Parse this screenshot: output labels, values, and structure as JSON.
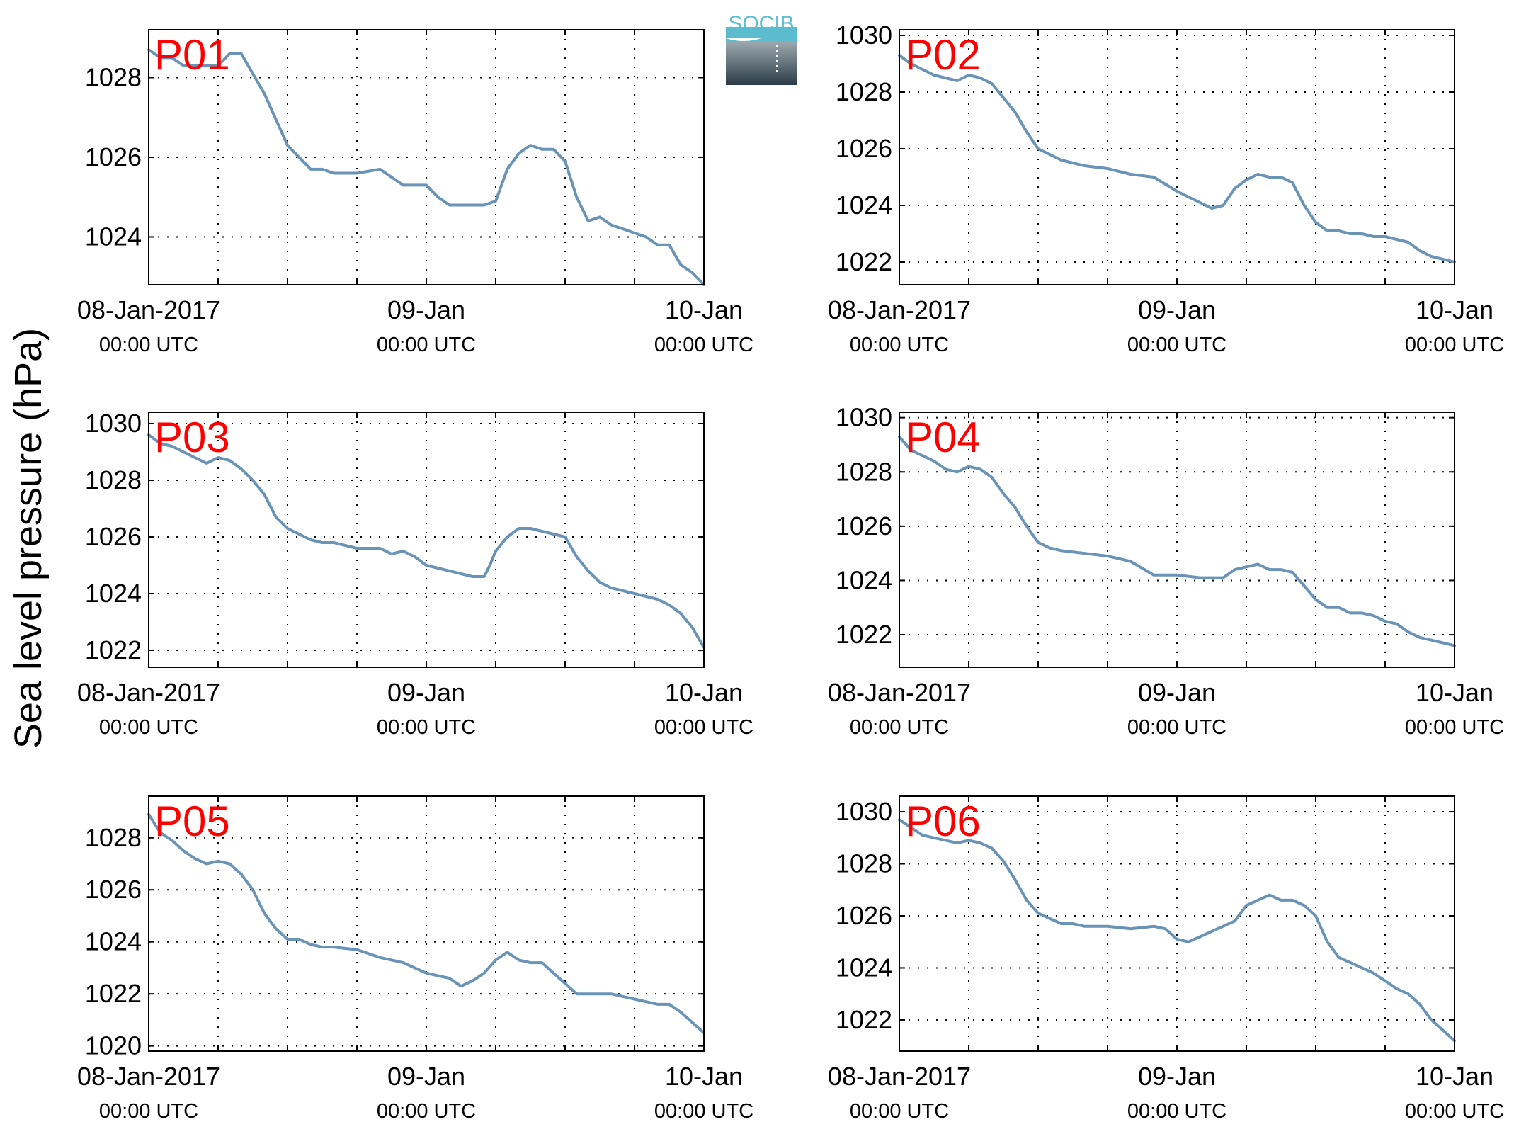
{
  "ylabel": "Sea level pressure (hPa)",
  "logo": {
    "text": "SOCIB",
    "color_top": "#5bbccf",
    "color_bottom": "#2c3c47"
  },
  "series_color": "#6a93b8",
  "label_color": "#ff0000",
  "chart_data": [
    {
      "type": "line",
      "panel": "P01",
      "x_ticks": [
        {
          "date": "08-Jan-2017",
          "time": "00:00 UTC"
        },
        {
          "date": "09-Jan",
          "time": "00:00 UTC"
        },
        {
          "date": "10-Jan",
          "time": "00:00 UTC"
        }
      ],
      "xlim_hours": [
        0,
        48
      ],
      "ylim": [
        1022.8,
        1029.2
      ],
      "yticks": [
        1024,
        1026,
        1028
      ],
      "grid": true,
      "x": [
        0,
        1,
        2,
        3,
        4,
        6,
        7,
        8,
        9,
        10,
        12,
        14,
        15,
        16,
        16.5,
        18,
        20,
        22,
        24,
        25,
        26,
        27,
        29,
        30,
        30.5,
        31,
        32,
        33,
        34,
        35,
        36,
        37,
        38,
        39,
        40,
        41,
        42,
        43,
        44,
        45,
        46,
        47,
        48
      ],
      "y": [
        1028.7,
        1028.5,
        1028.5,
        1028.3,
        1028.3,
        1028.3,
        1028.6,
        1028.6,
        1028.1,
        1027.6,
        1026.3,
        1025.7,
        1025.7,
        1025.6,
        1025.6,
        1025.6,
        1025.7,
        1025.3,
        1025.3,
        1025.0,
        1024.8,
        1024.8,
        1024.8,
        1024.9,
        1025.3,
        1025.7,
        1026.1,
        1026.3,
        1026.2,
        1026.2,
        1025.9,
        1025.0,
        1024.4,
        1024.5,
        1024.3,
        1024.2,
        1024.1,
        1024.0,
        1023.8,
        1023.8,
        1023.3,
        1023.1,
        1022.8
      ]
    },
    {
      "type": "line",
      "panel": "P02",
      "x_ticks": [
        {
          "date": "08-Jan-2017",
          "time": "00:00 UTC"
        },
        {
          "date": "09-Jan",
          "time": "00:00 UTC"
        },
        {
          "date": "10-Jan",
          "time": "00:00 UTC"
        }
      ],
      "xlim_hours": [
        0,
        48
      ],
      "ylim": [
        1021.2,
        1030.2
      ],
      "yticks": [
        1022,
        1024,
        1026,
        1028,
        1030
      ],
      "grid": true,
      "x": [
        0,
        1,
        2,
        3,
        4,
        5,
        6,
        7,
        8,
        9,
        10,
        11,
        12,
        13,
        14,
        15,
        16,
        18,
        20,
        22,
        24,
        25,
        26,
        27,
        28,
        29,
        30,
        31,
        32,
        33,
        34,
        35,
        36,
        37,
        38,
        39,
        40,
        41,
        42,
        43,
        44,
        45,
        46,
        47,
        48
      ],
      "y": [
        1029.3,
        1029.0,
        1028.8,
        1028.6,
        1028.5,
        1028.4,
        1028.6,
        1028.5,
        1028.3,
        1027.8,
        1027.3,
        1026.6,
        1026.0,
        1025.8,
        1025.6,
        1025.5,
        1025.4,
        1025.3,
        1025.1,
        1025.0,
        1024.5,
        1024.3,
        1024.1,
        1023.9,
        1024.0,
        1024.6,
        1024.9,
        1025.1,
        1025.0,
        1025.0,
        1024.8,
        1024.0,
        1023.4,
        1023.1,
        1023.1,
        1023.0,
        1023.0,
        1022.9,
        1022.9,
        1022.8,
        1022.7,
        1022.4,
        1022.2,
        1022.1,
        1022.0
      ]
    },
    {
      "type": "line",
      "panel": "P03",
      "x_ticks": [
        {
          "date": "08-Jan-2017",
          "time": "00:00 UTC"
        },
        {
          "date": "09-Jan",
          "time": "00:00 UTC"
        },
        {
          "date": "10-Jan",
          "time": "00:00 UTC"
        }
      ],
      "xlim_hours": [
        0,
        48
      ],
      "ylim": [
        1021.4,
        1030.4
      ],
      "yticks": [
        1022,
        1024,
        1026,
        1028,
        1030
      ],
      "grid": true,
      "x": [
        0,
        1,
        2,
        3,
        4,
        5,
        6,
        7,
        8,
        9,
        10,
        11,
        12,
        13,
        14,
        15,
        16,
        18,
        20,
        21,
        22,
        23,
        24,
        25,
        26,
        27,
        28,
        29,
        29.5,
        30,
        31,
        32,
        33,
        34,
        35,
        36,
        37,
        38,
        39,
        40,
        41,
        42,
        43,
        44,
        45,
        46,
        47,
        48
      ],
      "y": [
        1029.6,
        1029.3,
        1029.2,
        1029.0,
        1028.8,
        1028.6,
        1028.8,
        1028.7,
        1028.4,
        1028.0,
        1027.5,
        1026.7,
        1026.3,
        1026.1,
        1025.9,
        1025.8,
        1025.8,
        1025.6,
        1025.6,
        1025.4,
        1025.5,
        1025.3,
        1025.0,
        1024.9,
        1024.8,
        1024.7,
        1024.6,
        1024.6,
        1025.0,
        1025.5,
        1026.0,
        1026.3,
        1026.3,
        1026.2,
        1026.1,
        1026.0,
        1025.3,
        1024.8,
        1024.4,
        1024.2,
        1024.1,
        1024.0,
        1023.9,
        1023.8,
        1023.6,
        1023.3,
        1022.8,
        1022.1
      ]
    },
    {
      "type": "line",
      "panel": "P04",
      "x_ticks": [
        {
          "date": "08-Jan-2017",
          "time": "00:00 UTC"
        },
        {
          "date": "09-Jan",
          "time": "00:00 UTC"
        },
        {
          "date": "10-Jan",
          "time": "00:00 UTC"
        }
      ],
      "xlim_hours": [
        0,
        48
      ],
      "ylim": [
        1020.8,
        1030.2
      ],
      "yticks": [
        1022,
        1024,
        1026,
        1028,
        1030
      ],
      "grid": true,
      "x": [
        0,
        1,
        2,
        3,
        4,
        5,
        6,
        7,
        8,
        9,
        10,
        11,
        12,
        13,
        14,
        16,
        18,
        20,
        22,
        24,
        26,
        28,
        29,
        30,
        31,
        32,
        33,
        34,
        35,
        36,
        37,
        38,
        39,
        40,
        41,
        42,
        43,
        44,
        45,
        46,
        47,
        48
      ],
      "y": [
        1029.3,
        1028.8,
        1028.6,
        1028.4,
        1028.1,
        1028.0,
        1028.2,
        1028.1,
        1027.8,
        1027.2,
        1026.7,
        1026.0,
        1025.4,
        1025.2,
        1025.1,
        1025.0,
        1024.9,
        1024.7,
        1024.2,
        1024.2,
        1024.1,
        1024.1,
        1024.4,
        1024.5,
        1024.6,
        1024.4,
        1024.4,
        1024.3,
        1023.8,
        1023.3,
        1023.0,
        1023.0,
        1022.8,
        1022.8,
        1022.7,
        1022.5,
        1022.4,
        1022.1,
        1021.9,
        1021.8,
        1021.7,
        1021.6
      ]
    },
    {
      "type": "line",
      "panel": "P05",
      "x_ticks": [
        {
          "date": "08-Jan-2017",
          "time": "00:00 UTC"
        },
        {
          "date": "09-Jan",
          "time": "00:00 UTC"
        },
        {
          "date": "10-Jan",
          "time": "00:00 UTC"
        }
      ],
      "xlim_hours": [
        0,
        48
      ],
      "ylim": [
        1019.8,
        1029.6
      ],
      "yticks": [
        1020,
        1022,
        1024,
        1026,
        1028
      ],
      "grid": true,
      "x": [
        0,
        1,
        2,
        3,
        4,
        5,
        6,
        7,
        8,
        9,
        10,
        11,
        12,
        13,
        14,
        15,
        16,
        18,
        20,
        22,
        24,
        25,
        26,
        27,
        28,
        29,
        30,
        31,
        32,
        33,
        34,
        35,
        36,
        37,
        38,
        39,
        40,
        41,
        42,
        43,
        44,
        45,
        46,
        47,
        48
      ],
      "y": [
        1028.9,
        1028.2,
        1027.9,
        1027.5,
        1027.2,
        1027.0,
        1027.1,
        1027.0,
        1026.6,
        1026.0,
        1025.1,
        1024.5,
        1024.1,
        1024.1,
        1023.9,
        1023.8,
        1023.8,
        1023.7,
        1023.4,
        1023.2,
        1022.8,
        1022.7,
        1022.6,
        1022.3,
        1022.5,
        1022.8,
        1023.3,
        1023.6,
        1023.3,
        1023.2,
        1023.2,
        1022.8,
        1022.4,
        1022.0,
        1022.0,
        1022.0,
        1022.0,
        1021.9,
        1021.8,
        1021.7,
        1021.6,
        1021.6,
        1021.3,
        1020.9,
        1020.5
      ]
    },
    {
      "type": "line",
      "panel": "P06",
      "x_ticks": [
        {
          "date": "08-Jan-2017",
          "time": "00:00 UTC"
        },
        {
          "date": "09-Jan",
          "time": "00:00 UTC"
        },
        {
          "date": "10-Jan",
          "time": "00:00 UTC"
        }
      ],
      "xlim_hours": [
        0,
        48
      ],
      "ylim": [
        1020.8,
        1030.6
      ],
      "yticks": [
        1022,
        1024,
        1026,
        1028,
        1030
      ],
      "grid": true,
      "x": [
        0,
        1,
        2,
        3,
        4,
        5,
        6,
        7,
        8,
        9,
        10,
        11,
        12,
        13,
        14,
        15,
        16,
        18,
        20,
        22,
        23,
        24,
        25,
        26,
        27,
        28,
        29,
        30,
        31,
        32,
        33,
        34,
        35,
        36,
        37,
        38,
        39,
        40,
        41,
        42,
        43,
        44,
        45,
        46,
        47,
        48
      ],
      "y": [
        1029.7,
        1029.4,
        1029.1,
        1029.0,
        1028.9,
        1028.8,
        1028.9,
        1028.8,
        1028.6,
        1028.1,
        1027.4,
        1026.6,
        1026.1,
        1025.9,
        1025.7,
        1025.7,
        1025.6,
        1025.6,
        1025.5,
        1025.6,
        1025.5,
        1025.1,
        1025.0,
        1025.2,
        1025.4,
        1025.6,
        1025.8,
        1026.4,
        1026.6,
        1026.8,
        1026.6,
        1026.6,
        1026.4,
        1026.0,
        1025.0,
        1024.4,
        1024.2,
        1024.0,
        1023.8,
        1023.5,
        1023.2,
        1023.0,
        1022.6,
        1022.0,
        1021.6,
        1021.2
      ]
    }
  ]
}
